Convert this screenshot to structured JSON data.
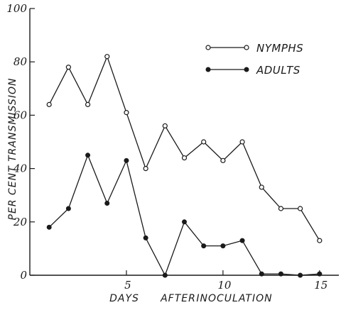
{
  "chart_data": {
    "type": "line",
    "xlabel_words": [
      "DAYS",
      "AFTER",
      "INOCULATION"
    ],
    "ylabel": "PER CENT TRANSMISSION",
    "xlim": [
      0,
      16
    ],
    "ylim": [
      0,
      100
    ],
    "x_ticks": [
      {
        "value": 5,
        "label": "5"
      },
      {
        "value": 10,
        "label": "10"
      },
      {
        "value": 15,
        "label": "15"
      }
    ],
    "y_ticks": [
      {
        "value": 0,
        "label": "0"
      },
      {
        "value": 20,
        "label": "20"
      },
      {
        "value": 40,
        "label": "40"
      },
      {
        "value": 60,
        "label": "60"
      },
      {
        "value": 80,
        "label": "80"
      },
      {
        "value": 100,
        "label": "100"
      }
    ],
    "grid": false,
    "legend_position": "top-right",
    "series": [
      {
        "name": "NYMPHS",
        "marker": "open-circle",
        "x": [
          1,
          2,
          3,
          4,
          5,
          6,
          7,
          8,
          9,
          10,
          11,
          12,
          13,
          14,
          15
        ],
        "y": [
          64,
          78,
          64,
          82,
          61,
          40,
          56,
          44,
          50,
          43,
          50,
          33,
          25,
          25,
          13
        ]
      },
      {
        "name": "ADULTS",
        "marker": "filled-circle",
        "x": [
          1,
          2,
          3,
          4,
          5,
          6,
          7,
          8,
          9,
          10,
          11,
          12,
          13,
          14,
          15
        ],
        "y": [
          18,
          25,
          45,
          27,
          43,
          14,
          0,
          20,
          11,
          11,
          13,
          0.5,
          0.5,
          0,
          0.5
        ]
      }
    ]
  }
}
